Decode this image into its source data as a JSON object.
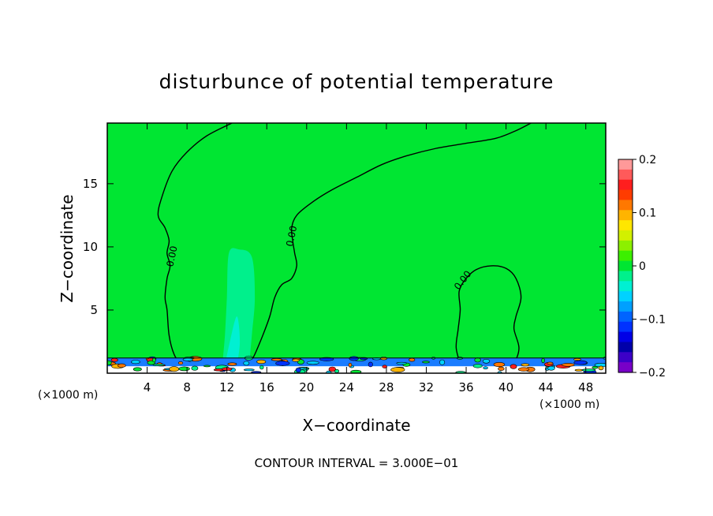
{
  "colors": {
    "background": "#00e632",
    "bottom_band": "#1a7cff",
    "contour": "#000000"
  },
  "chart_data": {
    "type": "contour",
    "title": "disturbunce of potential temperature",
    "xlabel": "X−coordinate",
    "ylabel": "Z−coordinate",
    "x_unit_label": "(×1000 m)",
    "x_unit_label_right": "(×1000 m)",
    "footer": "CONTOUR INTERVAL = 3.000E−01",
    "xlim": [
      0,
      50
    ],
    "ylim": [
      0,
      19.8
    ],
    "x_ticks": [
      4,
      8,
      12,
      16,
      20,
      24,
      28,
      32,
      36,
      40,
      44,
      48
    ],
    "y_ticks": [
      5,
      10,
      15
    ],
    "contour_label": "0.00",
    "colorbar": {
      "range": [
        -0.2,
        0.2
      ],
      "labels": [
        "0.2",
        "0.1",
        "0",
        "−0.1",
        "−0.2"
      ],
      "levels": [
        {
          "value": 0.2,
          "color": "#ff9999"
        },
        {
          "value": 0.18,
          "color": "#ff5a5a"
        },
        {
          "value": 0.16,
          "color": "#ff1e1e"
        },
        {
          "value": 0.14,
          "color": "#ff3c00"
        },
        {
          "value": 0.12,
          "color": "#ff7800"
        },
        {
          "value": 0.1,
          "color": "#ffb400"
        },
        {
          "value": 0.08,
          "color": "#ffe600"
        },
        {
          "value": 0.06,
          "color": "#d2f000"
        },
        {
          "value": 0.04,
          "color": "#8cf000"
        },
        {
          "value": 0.02,
          "color": "#3cf000"
        },
        {
          "value": 0.0,
          "color": "#00e632"
        },
        {
          "value": -0.02,
          "color": "#00f08c"
        },
        {
          "value": -0.04,
          "color": "#00f0d2"
        },
        {
          "value": -0.06,
          "color": "#00d2ff"
        },
        {
          "value": -0.08,
          "color": "#00a0ff"
        },
        {
          "value": -0.1,
          "color": "#0064ff"
        },
        {
          "value": -0.12,
          "color": "#0032ff"
        },
        {
          "value": -0.14,
          "color": "#0000e6"
        },
        {
          "value": -0.16,
          "color": "#0000aa"
        },
        {
          "value": -0.18,
          "color": "#3c00c8"
        },
        {
          "value": -0.2,
          "color": "#7800c8"
        }
      ]
    },
    "zero_contours": [
      {
        "name": "left-plume",
        "points": [
          [
            7.5,
            0.5
          ],
          [
            6.7,
            1.5
          ],
          [
            6.2,
            3
          ],
          [
            6.0,
            5
          ],
          [
            5.8,
            6
          ],
          [
            6.0,
            7.5
          ],
          [
            6.3,
            8.5
          ],
          [
            6.0,
            9.5
          ],
          [
            6.2,
            10.5
          ],
          [
            5.8,
            11.5
          ],
          [
            5.1,
            12.5
          ],
          [
            5.5,
            14
          ],
          [
            6.5,
            16
          ],
          [
            8.0,
            17.5
          ],
          [
            10.0,
            18.8
          ],
          [
            12.5,
            19.8
          ]
        ]
      },
      {
        "name": "central-plume",
        "points": [
          [
            14.0,
            0.3
          ],
          [
            14.8,
            1.5
          ],
          [
            15.6,
            3
          ],
          [
            16.3,
            4.5
          ],
          [
            16.8,
            6
          ],
          [
            17.5,
            7
          ],
          [
            18.5,
            7.5
          ],
          [
            19.0,
            8.5
          ],
          [
            18.8,
            9.5
          ],
          [
            18.6,
            10.5
          ],
          [
            18.5,
            11.5
          ],
          [
            19.0,
            12.5
          ],
          [
            20.5,
            13.5
          ],
          [
            22.5,
            14.5
          ],
          [
            25.0,
            15.5
          ],
          [
            27.5,
            16.5
          ],
          [
            30.0,
            17.2
          ],
          [
            33.0,
            17.8
          ],
          [
            36.0,
            18.2
          ],
          [
            39.0,
            18.6
          ],
          [
            41.0,
            19.2
          ],
          [
            42.5,
            19.8
          ]
        ]
      },
      {
        "name": "right-bump",
        "points": [
          [
            35.5,
            0.5
          ],
          [
            35.0,
            2
          ],
          [
            35.2,
            3.5
          ],
          [
            35.4,
            5
          ],
          [
            35.3,
            6.5
          ],
          [
            36.0,
            7.5
          ],
          [
            37.0,
            8.2
          ],
          [
            38.5,
            8.5
          ],
          [
            40.0,
            8.3
          ],
          [
            41.0,
            7.5
          ],
          [
            41.5,
            6
          ],
          [
            41.0,
            4.5
          ],
          [
            40.8,
            3.5
          ],
          [
            41.3,
            2
          ],
          [
            40.8,
            0.8
          ],
          [
            40.0,
            0.4
          ]
        ]
      }
    ],
    "cold_plume": {
      "color": "#00f08c",
      "points": [
        [
          11.5,
          0.3
        ],
        [
          11.8,
          3
        ],
        [
          12.0,
          6
        ],
        [
          12.2,
          9.5
        ],
        [
          13.2,
          9.8
        ],
        [
          14.5,
          9.2
        ],
        [
          14.8,
          6
        ],
        [
          14.5,
          3
        ],
        [
          14.2,
          0.3
        ]
      ]
    },
    "cold_core": {
      "color": "#00f0d2",
      "points": [
        [
          11.8,
          0.6
        ],
        [
          12.3,
          2.5
        ],
        [
          13.0,
          4.5
        ],
        [
          13.3,
          2.5
        ],
        [
          13.0,
          0.6
        ]
      ]
    }
  }
}
